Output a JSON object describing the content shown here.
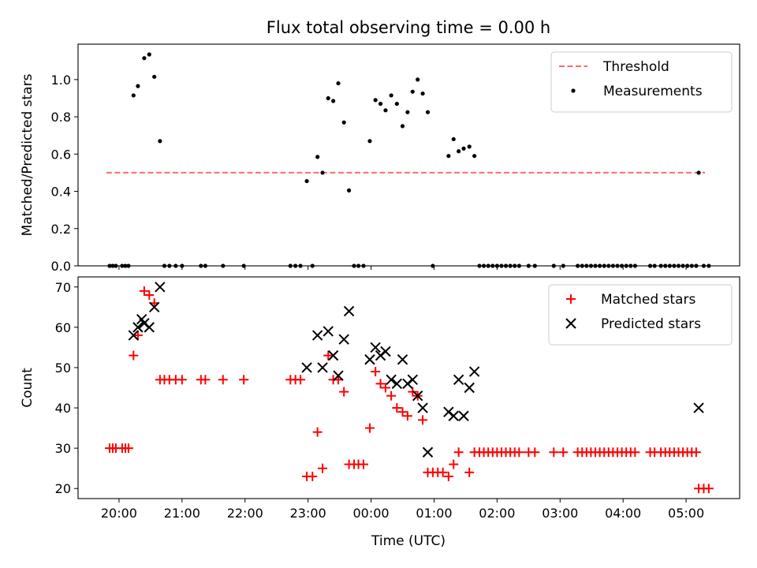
{
  "figure": {
    "title": "Flux total observing time = 0.00 h",
    "xlabel": "Time (UTC)"
  },
  "chart_data": [
    {
      "type": "scatter",
      "ylabel": "Matched/Predicted stars",
      "xlim": [
        -0.65,
        9.85
      ],
      "ylim": [
        0,
        1.19
      ],
      "yticks": [
        0.0,
        0.2,
        0.4,
        0.6,
        0.8,
        1.0
      ],
      "yticklabels": [
        "0.0",
        "0.2",
        "0.4",
        "0.6",
        "0.8",
        "1.0"
      ],
      "xticks": [],
      "legend_position": "top-right",
      "threshold": {
        "name": "Threshold",
        "value": 0.5,
        "x_start": -0.2,
        "x_end": 9.3,
        "color": "#ff6b6b",
        "style": "dashed"
      },
      "series": [
        {
          "name": "Measurements",
          "color": "#000000",
          "marker": "dot",
          "points": [
            [
              -0.15,
              0
            ],
            [
              -0.1,
              0
            ],
            [
              -0.05,
              0
            ],
            [
              0.05,
              0
            ],
            [
              0.1,
              0
            ],
            [
              0.15,
              0
            ],
            [
              0.23,
              0.915
            ],
            [
              0.3,
              0.965
            ],
            [
              0.4,
              1.115
            ],
            [
              0.48,
              1.135
            ],
            [
              0.56,
              1.015
            ],
            [
              0.65,
              0.67
            ],
            [
              0.72,
              0
            ],
            [
              0.8,
              0
            ],
            [
              0.9,
              0
            ],
            [
              1.0,
              0
            ],
            [
              1.3,
              0
            ],
            [
              1.37,
              0
            ],
            [
              1.65,
              0
            ],
            [
              1.98,
              0
            ],
            [
              2.72,
              0
            ],
            [
              2.8,
              0
            ],
            [
              2.88,
              0
            ],
            [
              2.98,
              0.455
            ],
            [
              3.07,
              0
            ],
            [
              3.15,
              0.585
            ],
            [
              3.23,
              0.5
            ],
            [
              3.32,
              0.9
            ],
            [
              3.4,
              0.885
            ],
            [
              3.48,
              0.98
            ],
            [
              3.57,
              0.77
            ],
            [
              3.65,
              0.405
            ],
            [
              3.73,
              0
            ],
            [
              3.8,
              0
            ],
            [
              3.88,
              0
            ],
            [
              3.98,
              0.67
            ],
            [
              4.07,
              0.89
            ],
            [
              4.15,
              0.87
            ],
            [
              4.23,
              0.835
            ],
            [
              4.32,
              0.915
            ],
            [
              4.41,
              0.87
            ],
            [
              4.5,
              0.75
            ],
            [
              4.58,
              0.825
            ],
            [
              4.66,
              0.935
            ],
            [
              4.74,
              1.0
            ],
            [
              4.82,
              0.925
            ],
            [
              4.9,
              0.825
            ],
            [
              4.98,
              0
            ],
            [
              5.23,
              0.59
            ],
            [
              5.31,
              0.68
            ],
            [
              5.39,
              0.615
            ],
            [
              5.47,
              0.63
            ],
            [
              5.56,
              0.64
            ],
            [
              5.64,
              0.59
            ],
            [
              5.72,
              0
            ],
            [
              5.79,
              0
            ],
            [
              5.86,
              0
            ],
            [
              5.93,
              0
            ],
            [
              6.0,
              0
            ],
            [
              6.07,
              0
            ],
            [
              6.14,
              0
            ],
            [
              6.21,
              0
            ],
            [
              6.28,
              0
            ],
            [
              6.35,
              0
            ],
            [
              6.5,
              0
            ],
            [
              6.6,
              0
            ],
            [
              6.9,
              0
            ],
            [
              7.05,
              0
            ],
            [
              7.28,
              0
            ],
            [
              7.35,
              0
            ],
            [
              7.42,
              0
            ],
            [
              7.49,
              0
            ],
            [
              7.56,
              0
            ],
            [
              7.63,
              0
            ],
            [
              7.7,
              0
            ],
            [
              7.77,
              0
            ],
            [
              7.84,
              0
            ],
            [
              7.91,
              0
            ],
            [
              7.98,
              0
            ],
            [
              8.05,
              0
            ],
            [
              8.12,
              0
            ],
            [
              8.19,
              0
            ],
            [
              8.43,
              0
            ],
            [
              8.5,
              0
            ],
            [
              8.6,
              0
            ],
            [
              8.67,
              0
            ],
            [
              8.74,
              0
            ],
            [
              8.81,
              0
            ],
            [
              8.88,
              0
            ],
            [
              8.95,
              0
            ],
            [
              9.02,
              0
            ],
            [
              9.09,
              0
            ],
            [
              9.16,
              0
            ],
            [
              9.2,
              0.5
            ],
            [
              9.28,
              0
            ],
            [
              9.36,
              0
            ]
          ]
        }
      ]
    },
    {
      "type": "scatter",
      "ylabel": "Count",
      "xlim": [
        -0.65,
        9.85
      ],
      "ylim": [
        17.5,
        72.5
      ],
      "yticks": [
        20,
        30,
        40,
        50,
        60,
        70
      ],
      "yticklabels": [
        "20",
        "30",
        "40",
        "50",
        "60",
        "70"
      ],
      "xticks": [
        0,
        1,
        2,
        3,
        4,
        5,
        6,
        7,
        8,
        9
      ],
      "xticklabels": [
        "20:00",
        "21:00",
        "22:00",
        "23:00",
        "00:00",
        "01:00",
        "02:00",
        "03:00",
        "04:00",
        "05:00"
      ],
      "legend_position": "top-right",
      "series": [
        {
          "name": "Matched stars",
          "color": "#ff0000",
          "marker": "plus",
          "points": [
            [
              -0.15,
              30
            ],
            [
              -0.1,
              30
            ],
            [
              -0.05,
              30
            ],
            [
              0.05,
              30
            ],
            [
              0.1,
              30
            ],
            [
              0.15,
              30
            ],
            [
              0.23,
              53
            ],
            [
              0.3,
              58
            ],
            [
              0.4,
              69
            ],
            [
              0.48,
              68
            ],
            [
              0.56,
              66
            ],
            [
              0.65,
              47
            ],
            [
              0.72,
              47
            ],
            [
              0.8,
              47
            ],
            [
              0.9,
              47
            ],
            [
              1.0,
              47
            ],
            [
              1.3,
              47
            ],
            [
              1.37,
              47
            ],
            [
              1.65,
              47
            ],
            [
              1.98,
              47
            ],
            [
              2.72,
              47
            ],
            [
              2.8,
              47
            ],
            [
              2.88,
              47
            ],
            [
              2.98,
              23
            ],
            [
              3.07,
              23
            ],
            [
              3.15,
              34
            ],
            [
              3.23,
              25
            ],
            [
              3.32,
              53
            ],
            [
              3.4,
              47
            ],
            [
              3.48,
              47
            ],
            [
              3.57,
              44
            ],
            [
              3.65,
              26
            ],
            [
              3.73,
              26
            ],
            [
              3.8,
              26
            ],
            [
              3.88,
              26
            ],
            [
              3.98,
              35
            ],
            [
              4.07,
              49
            ],
            [
              4.15,
              46
            ],
            [
              4.23,
              45
            ],
            [
              4.32,
              43
            ],
            [
              4.41,
              40
            ],
            [
              4.5,
              39
            ],
            [
              4.58,
              38
            ],
            [
              4.66,
              44
            ],
            [
              4.74,
              43
            ],
            [
              4.82,
              37
            ],
            [
              4.9,
              24
            ],
            [
              4.98,
              24
            ],
            [
              5.06,
              24
            ],
            [
              5.14,
              24
            ],
            [
              5.23,
              23
            ],
            [
              5.31,
              26
            ],
            [
              5.39,
              29
            ],
            [
              5.56,
              24
            ],
            [
              5.64,
              29
            ],
            [
              5.72,
              29
            ],
            [
              5.79,
              29
            ],
            [
              5.86,
              29
            ],
            [
              5.93,
              29
            ],
            [
              6.0,
              29
            ],
            [
              6.07,
              29
            ],
            [
              6.14,
              29
            ],
            [
              6.21,
              29
            ],
            [
              6.28,
              29
            ],
            [
              6.35,
              29
            ],
            [
              6.5,
              29
            ],
            [
              6.6,
              29
            ],
            [
              6.9,
              29
            ],
            [
              7.05,
              29
            ],
            [
              7.28,
              29
            ],
            [
              7.35,
              29
            ],
            [
              7.42,
              29
            ],
            [
              7.49,
              29
            ],
            [
              7.56,
              29
            ],
            [
              7.63,
              29
            ],
            [
              7.7,
              29
            ],
            [
              7.77,
              29
            ],
            [
              7.84,
              29
            ],
            [
              7.91,
              29
            ],
            [
              7.98,
              29
            ],
            [
              8.05,
              29
            ],
            [
              8.12,
              29
            ],
            [
              8.19,
              29
            ],
            [
              8.43,
              29
            ],
            [
              8.5,
              29
            ],
            [
              8.6,
              29
            ],
            [
              8.67,
              29
            ],
            [
              8.74,
              29
            ],
            [
              8.81,
              29
            ],
            [
              8.88,
              29
            ],
            [
              8.95,
              29
            ],
            [
              9.02,
              29
            ],
            [
              9.09,
              29
            ],
            [
              9.16,
              29
            ],
            [
              9.2,
              20
            ],
            [
              9.28,
              20
            ],
            [
              9.36,
              20
            ]
          ]
        },
        {
          "name": "Predicted stars",
          "color": "#000000",
          "marker": "x",
          "points": [
            [
              0.23,
              58
            ],
            [
              0.3,
              60
            ],
            [
              0.36,
              62
            ],
            [
              0.4,
              61
            ],
            [
              0.48,
              60
            ],
            [
              0.56,
              65
            ],
            [
              0.65,
              70
            ],
            [
              2.98,
              50
            ],
            [
              3.15,
              58
            ],
            [
              3.23,
              50
            ],
            [
              3.32,
              59
            ],
            [
              3.4,
              53
            ],
            [
              3.48,
              48
            ],
            [
              3.57,
              57
            ],
            [
              3.65,
              64
            ],
            [
              3.98,
              52
            ],
            [
              4.07,
              55
            ],
            [
              4.15,
              53
            ],
            [
              4.23,
              54
            ],
            [
              4.32,
              47
            ],
            [
              4.41,
              46
            ],
            [
              4.5,
              52
            ],
            [
              4.58,
              46
            ],
            [
              4.66,
              47
            ],
            [
              4.74,
              43
            ],
            [
              4.82,
              40
            ],
            [
              4.9,
              29
            ],
            [
              5.23,
              39
            ],
            [
              5.31,
              38
            ],
            [
              5.39,
              47
            ],
            [
              5.47,
              38
            ],
            [
              5.56,
              45
            ],
            [
              5.64,
              49
            ],
            [
              9.2,
              40
            ]
          ]
        }
      ]
    }
  ]
}
